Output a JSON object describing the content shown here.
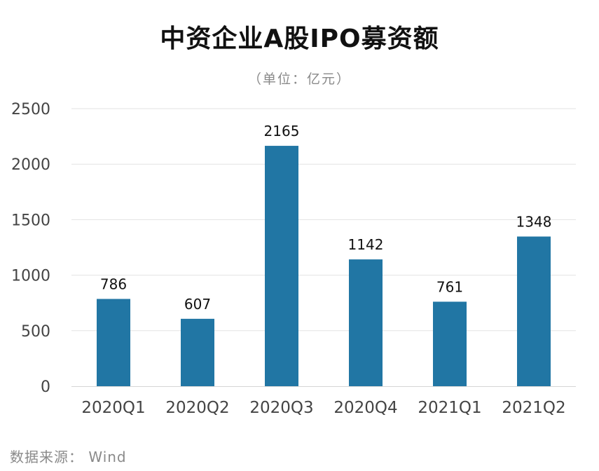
{
  "chart_data": {
    "type": "bar",
    "title": "中资企业A股IPO募资额",
    "subtitle": "（单位：亿元）",
    "categories": [
      "2020Q1",
      "2020Q2",
      "2020Q3",
      "2020Q4",
      "2021Q1",
      "2021Q2"
    ],
    "values": [
      786,
      607,
      2165,
      1142,
      761,
      1348
    ],
    "data_labels": [
      "786",
      "607",
      "2165",
      "1142",
      "761",
      "1348"
    ],
    "y_ticks": [
      "0",
      "500",
      "1000",
      "1500",
      "2000",
      "2500"
    ],
    "ylim": [
      0,
      2500
    ],
    "xlabel": "",
    "ylabel": "",
    "grid": true,
    "legend": "none",
    "bar_color": "#2176a4"
  },
  "footer": {
    "source": "数据来源： Wind"
  }
}
